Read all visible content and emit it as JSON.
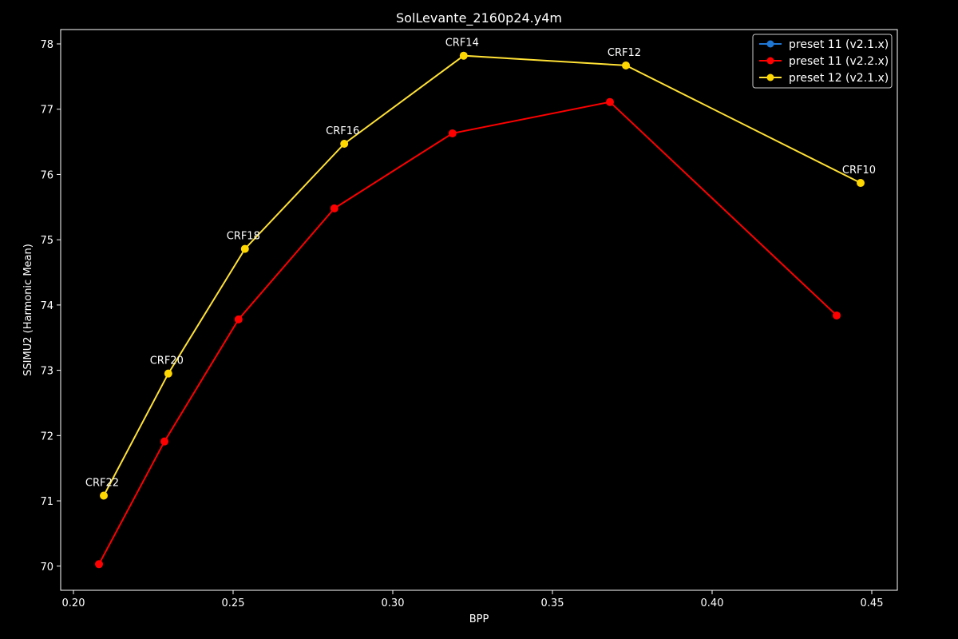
{
  "chart_data": {
    "type": "line",
    "title": "SolLevante_2160p24.y4m",
    "xlabel": "BPP",
    "ylabel": "SSIMU2 (Harmonic Mean)",
    "xlim": [
      0.196,
      0.458
    ],
    "ylim": [
      69.63,
      78.22
    ],
    "xticks": [
      0.2,
      0.25,
      0.3,
      0.35,
      0.4,
      0.45
    ],
    "xtick_labels": [
      "0.20",
      "0.25",
      "0.30",
      "0.35",
      "0.40",
      "0.45"
    ],
    "yticks": [
      70,
      71,
      72,
      73,
      74,
      75,
      76,
      77,
      78
    ],
    "ytick_labels": [
      "70",
      "71",
      "72",
      "73",
      "74",
      "75",
      "76",
      "77",
      "78"
    ],
    "grid": false,
    "legend_position": "top-right",
    "series": [
      {
        "name": "preset 11 (v2.1.x)",
        "color": "#1f77d4",
        "x": [],
        "y": []
      },
      {
        "name": "preset 11 (v2.2.x)",
        "color": "#ff0000",
        "x": [
          0.208,
          0.2285,
          0.2517,
          0.2817,
          0.3187,
          0.368,
          0.439
        ],
        "y": [
          70.03,
          71.91,
          73.78,
          75.48,
          76.63,
          77.11,
          73.84
        ]
      },
      {
        "name": "preset 12 (v2.1.x)",
        "color": "#ffd700",
        "line_color": "#ffe135",
        "x": [
          0.2095,
          0.2297,
          0.2537,
          0.2848,
          0.3222,
          0.373,
          0.4465
        ],
        "y": [
          71.08,
          72.95,
          74.86,
          76.47,
          77.82,
          77.67,
          75.87
        ]
      }
    ],
    "annotations": [
      {
        "text": "CRF22",
        "x": 0.2095,
        "y": 71.08
      },
      {
        "text": "CRF20",
        "x": 0.2297,
        "y": 72.95
      },
      {
        "text": "CRF18",
        "x": 0.2537,
        "y": 74.86
      },
      {
        "text": "CRF16",
        "x": 0.2848,
        "y": 76.47
      },
      {
        "text": "CRF14",
        "x": 0.3222,
        "y": 77.82
      },
      {
        "text": "CRF12",
        "x": 0.373,
        "y": 77.67
      },
      {
        "text": "CRF10",
        "x": 0.4465,
        "y": 75.87
      }
    ]
  }
}
